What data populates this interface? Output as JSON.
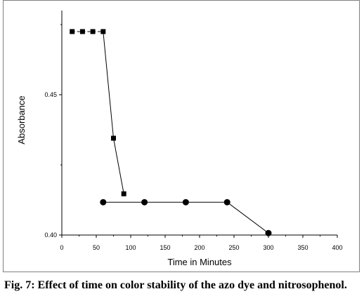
{
  "chart_data": {
    "type": "line",
    "title": "",
    "xlabel": "Time in Minutes",
    "ylabel": "Absorbance",
    "xlim": [
      0,
      400
    ],
    "ylim": [
      0.4,
      0.48
    ],
    "x_ticks": [
      "0",
      "50",
      "100",
      "150",
      "200",
      "250",
      "300",
      "350",
      "400"
    ],
    "y_ticks": [
      "0.40",
      "0.45"
    ],
    "y_tick_values": [
      0.4,
      0.45
    ],
    "grid": false,
    "legend": "none",
    "series": [
      {
        "marker": "square",
        "x": [
          15,
          30,
          45,
          60,
          75,
          90
        ],
        "y": [
          0.4725,
          0.4725,
          0.4725,
          0.4725,
          0.4345,
          0.4147
        ],
        "line_styles": [
          "dashed",
          "dashed",
          "dashed",
          "solid",
          "solid"
        ]
      },
      {
        "marker": "circle",
        "x": [
          60,
          120,
          180,
          240,
          300
        ],
        "y": [
          0.4117,
          0.4117,
          0.4117,
          0.4117,
          0.4007
        ]
      }
    ]
  },
  "caption": "Fig. 7: Effect of time on color stability of the azo dye and nitrosophenol."
}
